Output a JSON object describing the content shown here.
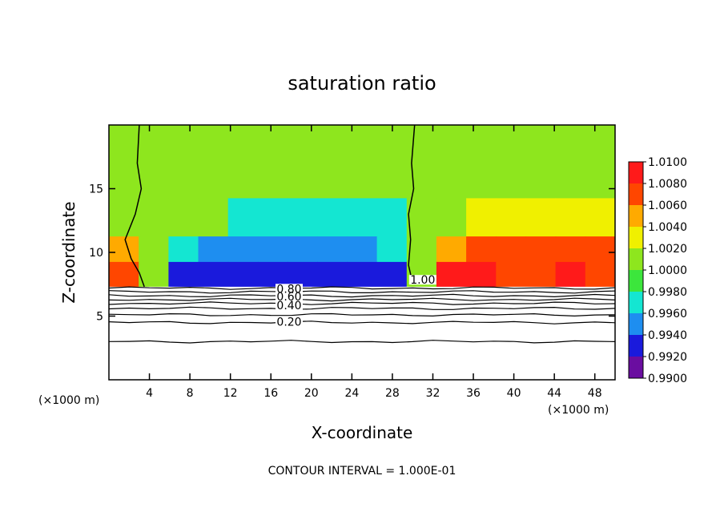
{
  "chart_data": {
    "type": "heatmap",
    "title": "saturation ratio",
    "xlabel": "X-coordinate",
    "ylabel": "Z-coordinate",
    "x_unit": "(×1000 m)",
    "xlim": [
      0,
      50
    ],
    "ylim": [
      0,
      20
    ],
    "x_ticks": [
      4,
      8,
      12,
      16,
      20,
      24,
      28,
      32,
      36,
      40,
      44,
      48
    ],
    "y_ticks": [
      5,
      10,
      15
    ],
    "grid": false,
    "colorbar": {
      "levels": [
        "0.9900",
        "0.9920",
        "0.9940",
        "0.9960",
        "0.9980",
        "1.0000",
        "1.0020",
        "1.0040",
        "1.0060",
        "1.0080",
        "1.0100"
      ],
      "colors": [
        "#6a0da0",
        "#1a1adc",
        "#1e8ef0",
        "#14e6d2",
        "#3ce63c",
        "#8ee61e",
        "#f0f000",
        "#ffaa00",
        "#ff4600",
        "#ff1a1a",
        "#ff8080"
      ],
      "placement": "right"
    },
    "contour_interval_text": "CONTOUR INTERVAL = 1.000E-01",
    "contour_labels": [
      {
        "text": "1.00",
        "x": 31.0,
        "z": 7.6
      },
      {
        "text": "0.80",
        "x": 17.8,
        "z": 6.9
      },
      {
        "text": "0.60",
        "x": 17.8,
        "z": 6.3
      },
      {
        "text": "0.40",
        "x": 17.8,
        "z": 5.6
      },
      {
        "text": "0.20",
        "x": 17.8,
        "z": 4.3
      }
    ],
    "series": [
      {
        "z_levels": [
          16.0,
          12.5,
          10.0,
          8.5
        ],
        "rows": [
          [
            1.0005,
            1.0,
            0.9996,
            0.9994,
            0.9994,
            0.9996,
            0.9997,
            0.9998,
            0.9996,
            0.9995,
            0.9997,
            0.9999,
            1.0004,
            1.0007,
            1.0008,
            1.0007,
            1.0007
          ],
          [
            1.0008,
            0.9999,
            0.9992,
            0.999,
            0.9961,
            0.9958,
            0.9962,
            0.9965,
            0.9959,
            0.996,
            0.9995,
            1.0002,
            1.0013,
            1.0022,
            1.0027,
            1.0026,
            1.0022
          ],
          [
            1.004,
            0.9998,
            0.9952,
            0.9938,
            0.9942,
            0.9934,
            0.9938,
            0.9932,
            0.9945,
            0.9955,
            0.9998,
            1.0042,
            1.0066,
            1.0058,
            1.0062,
            1.0068,
            1.006
          ],
          [
            1.007,
            0.9999,
            0.9922,
            0.9914,
            0.9918,
            0.9916,
            0.9914,
            0.9915,
            0.9916,
            0.9925,
            0.9999,
            1.0072,
            1.009,
            1.007,
            1.0068,
            1.0078,
            1.007
          ]
        ]
      }
    ]
  }
}
